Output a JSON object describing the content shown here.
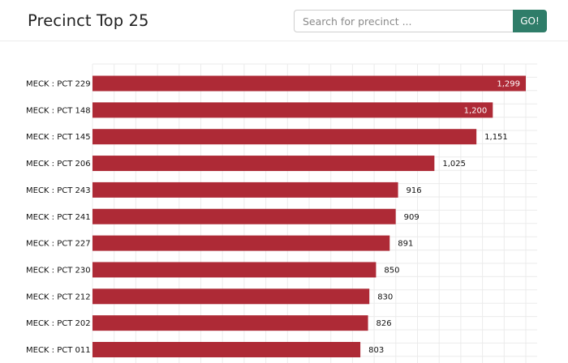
{
  "header": {
    "title": "Precinct Top 25",
    "search_placeholder": "Search for precinct ...",
    "go_label": "GO!"
  },
  "colors": {
    "bar": "#ae2a36",
    "go_button": "#2f7d69",
    "grid": "#ebebeb",
    "value_inside": "#ffffff",
    "value_outside": "#111111"
  },
  "chart_data": {
    "type": "bar",
    "orientation": "horizontal",
    "title": "",
    "xlabel": "",
    "ylabel": "",
    "xlim": [
      0,
      1299
    ],
    "grid": true,
    "categories": [
      "MECK : PCT 229",
      "MECK : PCT 148",
      "MECK : PCT 145",
      "MECK : PCT 206",
      "MECK : PCT 243",
      "MECK : PCT 241",
      "MECK : PCT 227",
      "MECK : PCT 230",
      "MECK : PCT 212",
      "MECK : PCT 202",
      "MECK : PCT 011"
    ],
    "values": [
      1299,
      1200,
      1151,
      1025,
      916,
      909,
      891,
      850,
      830,
      826,
      803
    ],
    "value_labels": [
      "1,299",
      "1,200",
      "1,151",
      "1,025",
      "916",
      "909",
      "891",
      "850",
      "830",
      "826",
      "803"
    ]
  }
}
